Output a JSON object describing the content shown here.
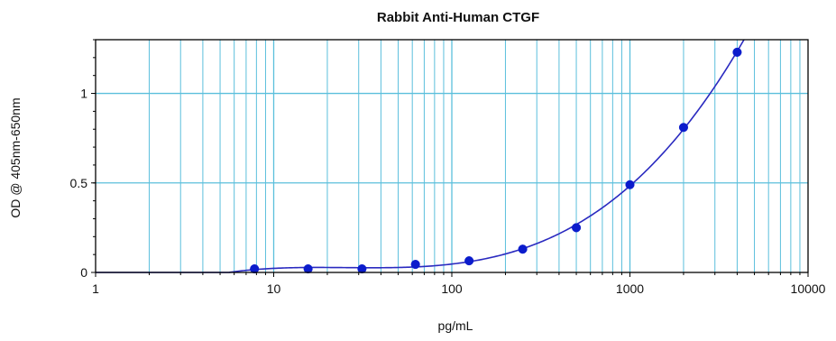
{
  "chart_data": {
    "type": "scatter",
    "title": "Rabbit Anti-Human CTGF",
    "xlabel": "pg/mL",
    "ylabel": "OD @ 405nm-650nm",
    "x_scale": "log",
    "xlim": [
      1,
      10000
    ],
    "ylim": [
      0,
      1.3
    ],
    "grid": true,
    "x_ticks": [
      1,
      10,
      100,
      1000,
      10000
    ],
    "x_tick_labels": [
      "1",
      "10",
      "100",
      "1000",
      "10000"
    ],
    "y_ticks": [
      0,
      0.5,
      1
    ],
    "y_tick_labels": [
      "0",
      "0.5",
      "1"
    ],
    "series": [
      {
        "points": [
          {
            "x": 7.8,
            "y": 0.02
          },
          {
            "x": 15.6,
            "y": 0.02
          },
          {
            "x": 31.3,
            "y": 0.02
          },
          {
            "x": 62.5,
            "y": 0.045
          },
          {
            "x": 125,
            "y": 0.065
          },
          {
            "x": 250,
            "y": 0.13
          },
          {
            "x": 500,
            "y": 0.25
          },
          {
            "x": 1000,
            "y": 0.49
          },
          {
            "x": 2000,
            "y": 0.81
          },
          {
            "x": 4000,
            "y": 1.23
          }
        ],
        "fit_curve": true
      }
    ],
    "colors": {
      "grid": "#5bbfdc",
      "marker": "#0b1ccc",
      "curve": "#2a2ac0",
      "axis": "#000000"
    }
  }
}
